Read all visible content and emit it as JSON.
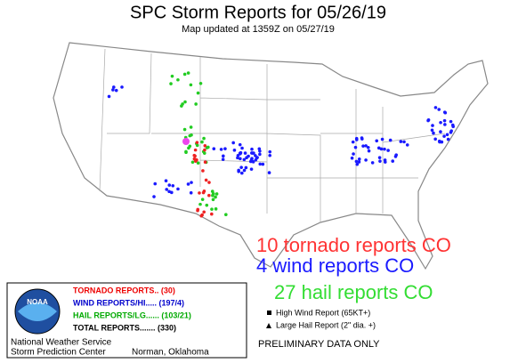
{
  "header": {
    "title": "SPC Storm Reports for 05/26/19",
    "subtitle": "Map updated at 1359Z on 05/27/19"
  },
  "annotations": [
    "10 tornado reports CO",
    "4 wind reports CO",
    "27 hail reports CO"
  ],
  "legend": {
    "logo": "NOAA",
    "entries": [
      "TORNADO REPORTS.. (30)",
      "WIND REPORTS/HI..... (197/4)",
      "HAIL REPORTS/LG...... (103/21)",
      "TOTAL REPORTS....... (330)"
    ],
    "symbols": [
      "High Wind Report (65KT+)",
      "Large Hail Report (2\" dia. +)"
    ],
    "office": [
      "National Weather Service",
      "Storm Prediction Center"
    ],
    "location": "Norman, Oklahoma"
  },
  "footer": "PRELIMINARY DATA ONLY"
}
